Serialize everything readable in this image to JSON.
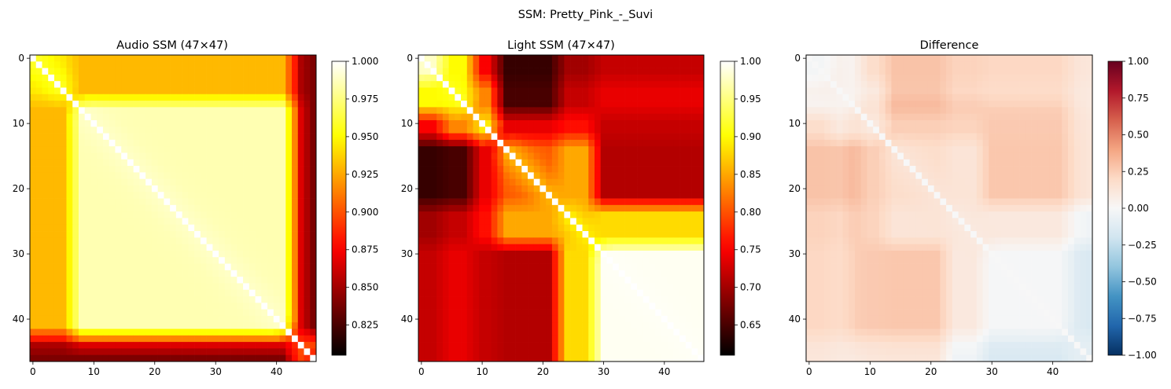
{
  "figure": {
    "suptitle": "SSM: Pretty_Pink_-_Suvi"
  },
  "chart_data": [
    {
      "type": "heatmap",
      "title": "Audio SSM (47×47)",
      "size": 47,
      "colormap": "hot",
      "xticks": [
        0,
        10,
        20,
        30,
        40
      ],
      "yticks": [
        0,
        10,
        20,
        30,
        40
      ],
      "colorbar": {
        "range": [
          0.805,
          1.0
        ],
        "ticks": [
          0.825,
          0.85,
          0.875,
          0.9,
          0.925,
          0.95,
          0.975,
          1.0
        ],
        "tick_labels": [
          "0.825",
          "0.850",
          "0.875",
          "0.900",
          "0.925",
          "0.950",
          "0.975",
          "1.000"
        ]
      },
      "segments": [
        [
          0,
          6,
          0.94
        ],
        [
          7,
          42,
          0.985
        ],
        [
          43,
          44,
          0.86
        ],
        [
          45,
          46,
          0.82
        ]
      ],
      "cross_similarity": [
        [
          1.0,
          0.93,
          0.86,
          0.84
        ],
        [
          0.93,
          0.985,
          0.88,
          0.84
        ],
        [
          0.86,
          0.88,
          1.0,
          0.9
        ],
        [
          0.84,
          0.84,
          0.9,
          1.0
        ]
      ],
      "diagonal": 1.0
    },
    {
      "type": "heatmap",
      "title": "Light SSM (47×47)",
      "size": 47,
      "colormap": "hot",
      "xticks": [
        0,
        10,
        20,
        30,
        40
      ],
      "yticks": [
        0,
        10,
        20,
        30,
        40
      ],
      "colorbar": {
        "range": [
          0.61,
          1.0
        ],
        "ticks": [
          0.65,
          0.7,
          0.75,
          0.8,
          0.85,
          0.9,
          0.95,
          1.0
        ],
        "tick_labels": [
          "0.65",
          "0.70",
          "0.75",
          "0.80",
          "0.85",
          "0.90",
          "0.95",
          "1.00"
        ]
      },
      "segments": [
        [
          0,
          3,
          0.97
        ],
        [
          4,
          8,
          0.88
        ],
        [
          9,
          12,
          0.85
        ],
        [
          13,
          22,
          0.8
        ],
        [
          23,
          28,
          0.85
        ],
        [
          29,
          46,
          0.995
        ]
      ],
      "cross_similarity": [
        [
          1.0,
          0.9,
          0.75,
          0.64,
          0.7,
          0.72
        ],
        [
          0.9,
          1.0,
          0.83,
          0.65,
          0.72,
          0.74
        ],
        [
          0.75,
          0.83,
          1.0,
          0.74,
          0.76,
          0.72
        ],
        [
          0.64,
          0.65,
          0.74,
          1.0,
          0.85,
          0.71
        ],
        [
          0.7,
          0.72,
          0.76,
          0.85,
          1.0,
          0.88
        ],
        [
          0.72,
          0.74,
          0.72,
          0.71,
          0.88,
          1.0
        ]
      ],
      "diagonal": 1.0
    },
    {
      "type": "heatmap",
      "title": "Difference",
      "size": 47,
      "colormap": "RdBu_r",
      "xticks": [
        0,
        10,
        20,
        30,
        40
      ],
      "yticks": [
        0,
        10,
        20,
        30,
        40
      ],
      "colorbar": {
        "range": [
          -1.0,
          1.0
        ],
        "ticks": [
          -1.0,
          -0.75,
          -0.5,
          -0.25,
          0.0,
          0.25,
          0.5,
          0.75,
          1.0
        ],
        "tick_labels": [
          "−1.00",
          "−0.75",
          "−0.50",
          "−0.25",
          "0.00",
          "0.25",
          "0.50",
          "0.75",
          "1.00"
        ]
      },
      "definition": "audio minus light"
    }
  ]
}
